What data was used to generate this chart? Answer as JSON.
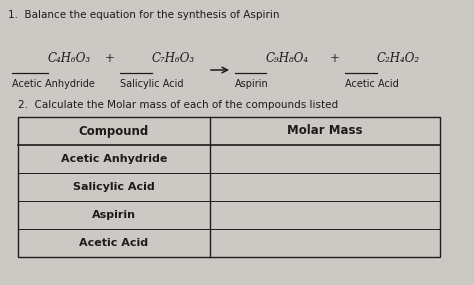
{
  "bg_color": "#ccc9c4",
  "title1": "1.  Balance the equation for the synthesis of Aspirin",
  "title2": "2.  Calculate the Molar mass of each of the compounds listed",
  "formulas": [
    "C₄H₆O₃",
    "C₇H₆O₃",
    "C₉H₈O₄",
    "C₂H₄O₂"
  ],
  "labels": [
    "Acetic Anhydride",
    "Salicylic Acid",
    "Aspirin",
    "Acetic Acid"
  ],
  "table_headers": [
    "Compound",
    "Molar Mass"
  ],
  "table_rows": [
    "Acetic Anhydride",
    "Salicylic Acid",
    "Aspirin",
    "Acetic Acid"
  ],
  "text_color": "#1c1c1c",
  "font_size_title": 7.5,
  "font_size_eq_formula": 8.5,
  "font_size_eq_label": 7.0,
  "font_size_table_header": 8.5,
  "font_size_table_row": 8.0
}
